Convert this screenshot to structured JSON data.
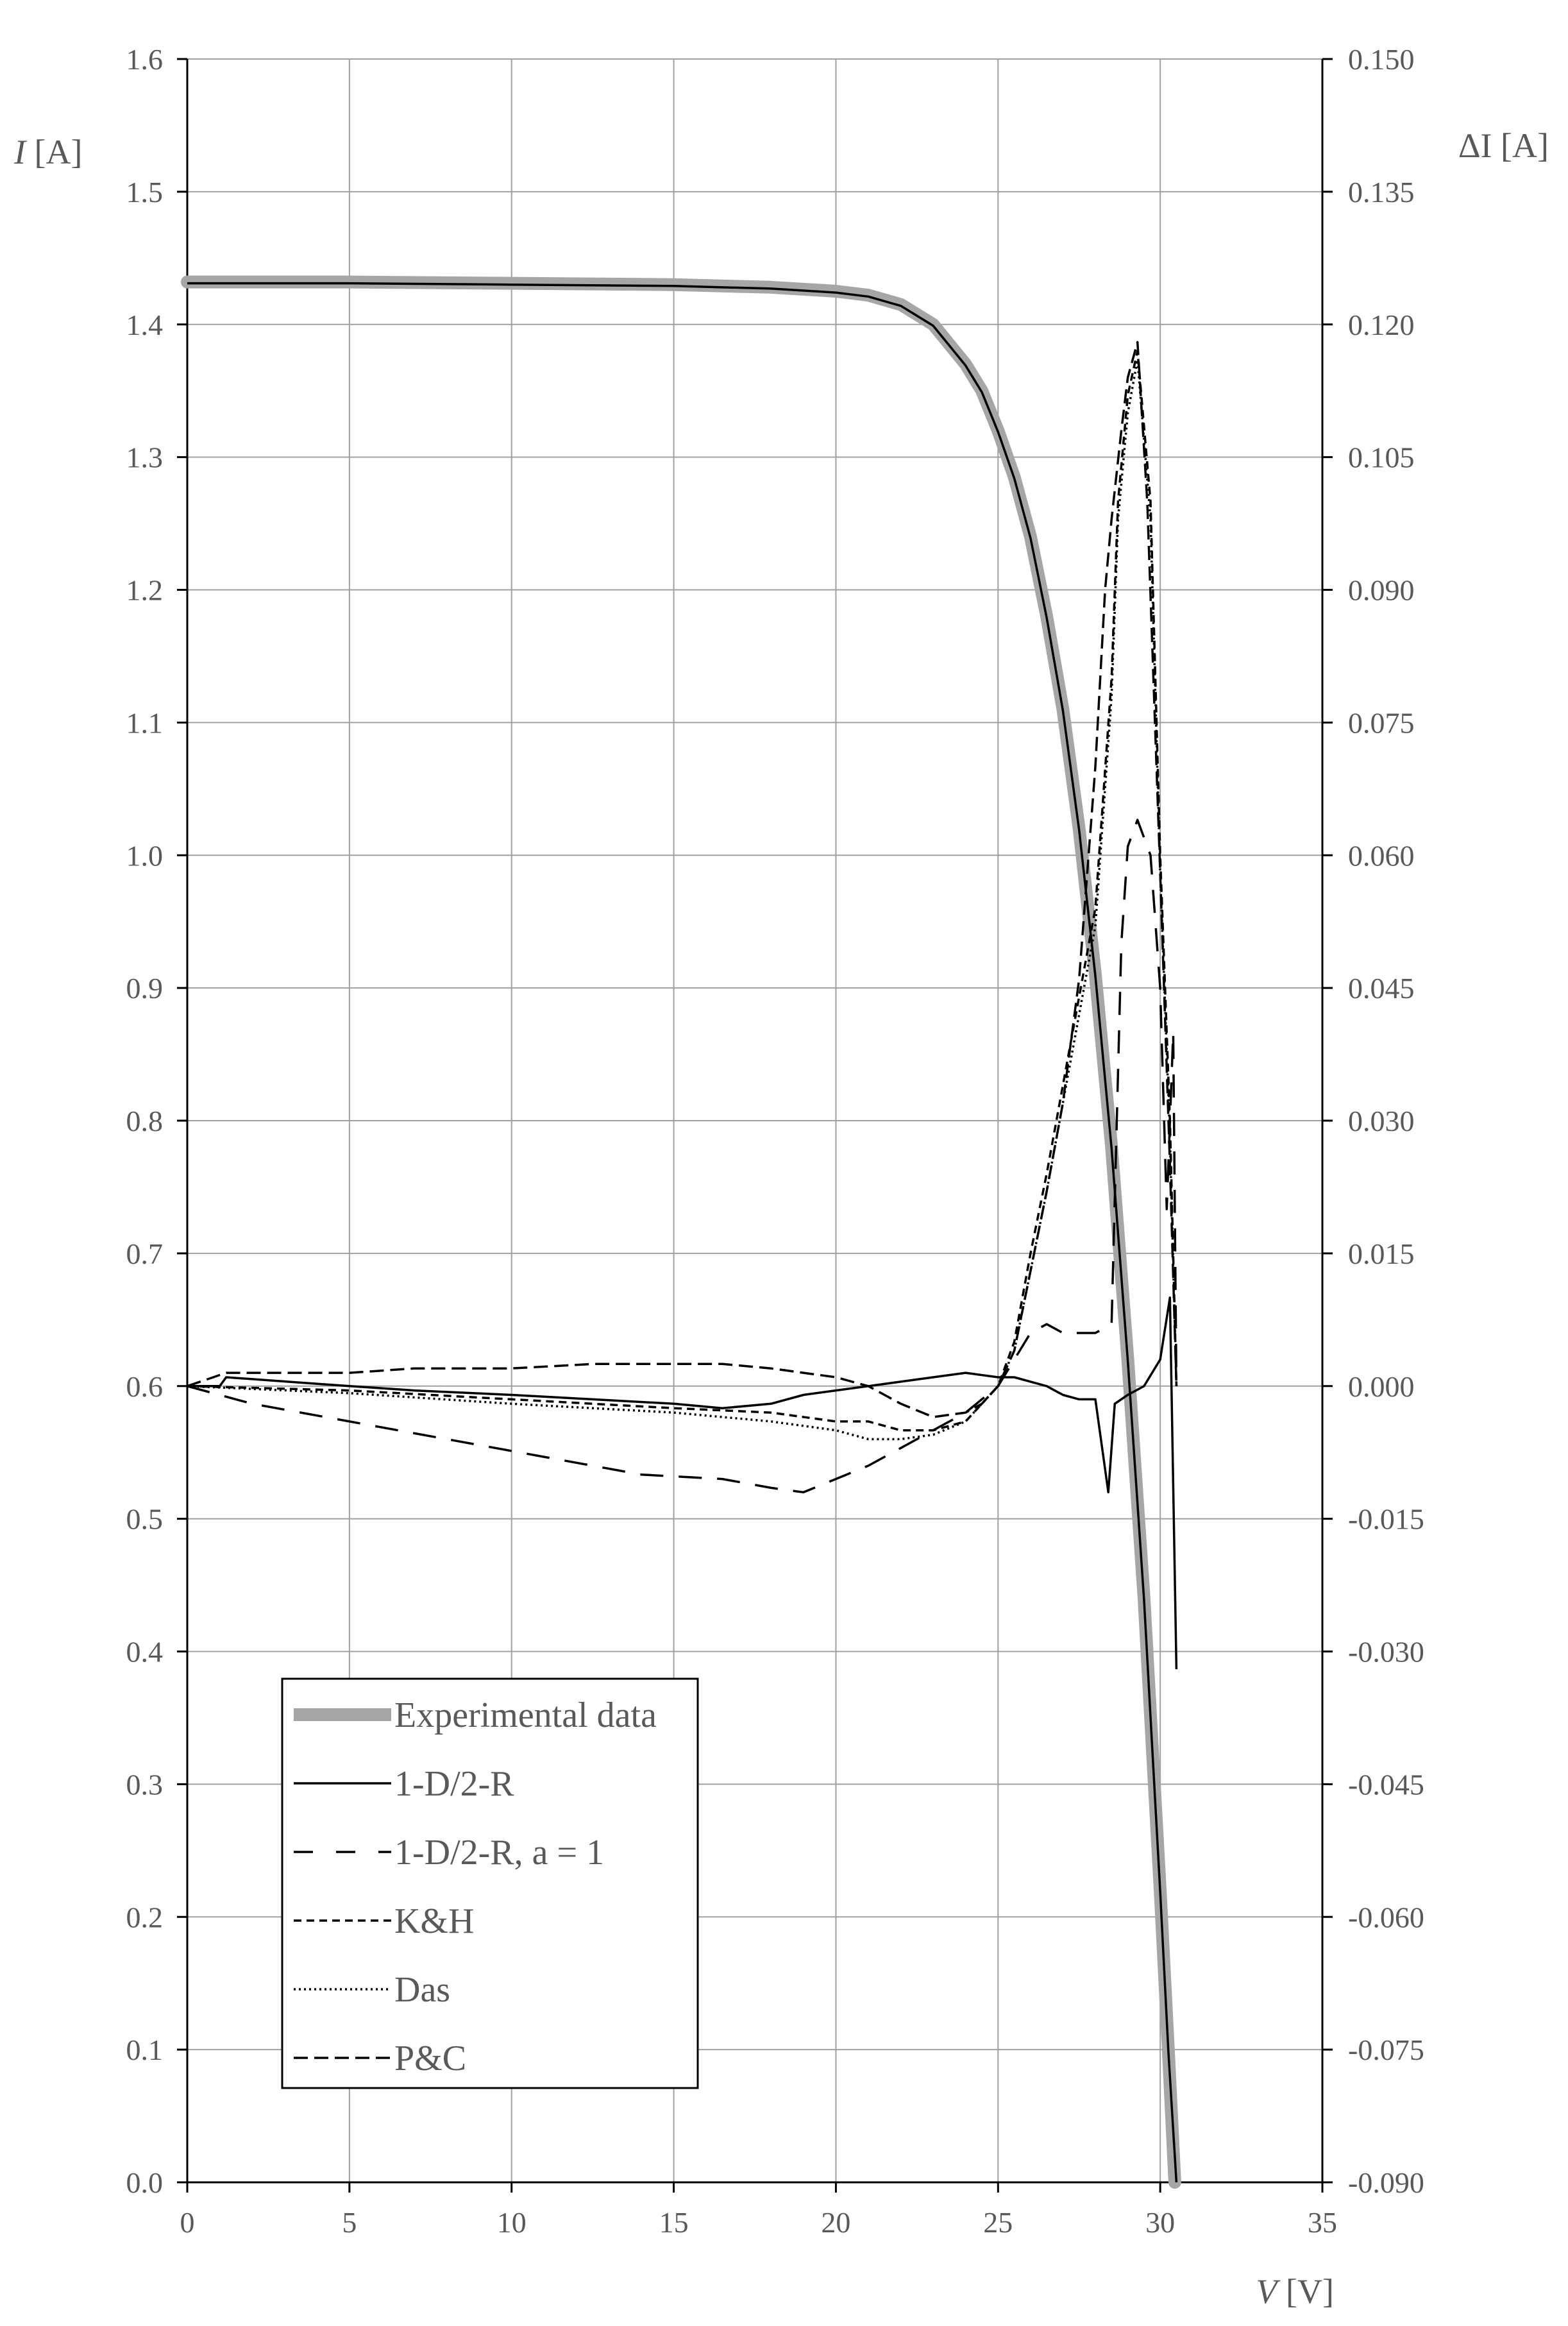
{
  "chart_data": {
    "type": "line",
    "title": "",
    "xlabel": {
      "symbol": "V",
      "unit": "[V]"
    },
    "ylabel_left": {
      "symbol": "I",
      "unit": "[A]"
    },
    "ylabel_right": {
      "symbol": "ΔI",
      "unit": "[A]"
    },
    "xlim": [
      0,
      35
    ],
    "ylim_left": [
      0.0,
      1.6
    ],
    "ylim_right": [
      -0.09,
      0.15
    ],
    "grid": true,
    "legend_position": "bottom-left",
    "x_ticks": [
      "0",
      "5",
      "10",
      "15",
      "20",
      "25",
      "30",
      "35"
    ],
    "y_left_ticks": [
      "0.0",
      "0.1",
      "0.2",
      "0.3",
      "0.4",
      "0.5",
      "0.6",
      "0.7",
      "0.8",
      "0.9",
      "1.0",
      "1.1",
      "1.2",
      "1.3",
      "1.4",
      "1.5",
      "1.6"
    ],
    "y_right_ticks": [
      "-0.090",
      "-0.075",
      "-0.060",
      "-0.045",
      "-0.030",
      "-0.015",
      "0.000",
      "0.015",
      "0.030",
      "0.045",
      "0.060",
      "0.075",
      "0.090",
      "0.105",
      "0.120",
      "0.135",
      "0.150"
    ],
    "series": [
      {
        "name": "Experimental data",
        "axis": "left",
        "style": "thick-gray",
        "color": "#a6a6a6",
        "points": [
          [
            0,
            1.432
          ],
          [
            5,
            1.432
          ],
          [
            10,
            1.431
          ],
          [
            15,
            1.43
          ],
          [
            18,
            1.428
          ],
          [
            20,
            1.425
          ],
          [
            21,
            1.422
          ],
          [
            22,
            1.415
          ],
          [
            23,
            1.4
          ],
          [
            24,
            1.37
          ],
          [
            24.5,
            1.35
          ],
          [
            25,
            1.32
          ],
          [
            25.5,
            1.285
          ],
          [
            26,
            1.24
          ],
          [
            26.5,
            1.18
          ],
          [
            27,
            1.11
          ],
          [
            27.5,
            1.02
          ],
          [
            28,
            0.91
          ],
          [
            28.5,
            0.78
          ],
          [
            29,
            0.62
          ],
          [
            29.5,
            0.44
          ],
          [
            30,
            0.22
          ],
          [
            30.25,
            0.1
          ],
          [
            30.45,
            0.0
          ]
        ]
      },
      {
        "name": "1-D/2-R",
        "axis": "left",
        "style": "solid",
        "color": "#000000",
        "points": [
          [
            0,
            1.431
          ],
          [
            5,
            1.431
          ],
          [
            10,
            1.43
          ],
          [
            15,
            1.429
          ],
          [
            18,
            1.427
          ],
          [
            20,
            1.424
          ],
          [
            21,
            1.421
          ],
          [
            22,
            1.414
          ],
          [
            23,
            1.399
          ],
          [
            24,
            1.369
          ],
          [
            24.5,
            1.349
          ],
          [
            25,
            1.319
          ],
          [
            25.5,
            1.284
          ],
          [
            26,
            1.239
          ],
          [
            26.5,
            1.179
          ],
          [
            27,
            1.109
          ],
          [
            27.5,
            1.019
          ],
          [
            28,
            0.909
          ],
          [
            28.5,
            0.779
          ],
          [
            29,
            0.619
          ],
          [
            29.5,
            0.439
          ],
          [
            30,
            0.219
          ],
          [
            30.25,
            0.099
          ],
          [
            30.5,
            0.0
          ]
        ]
      },
      {
        "name": "1-D/2-R",
        "axis": "right",
        "style": "solid",
        "color": "#000000",
        "points": [
          [
            0,
            0.0
          ],
          [
            1,
            0.0
          ],
          [
            1.2,
            0.001
          ],
          [
            5,
            0.0
          ],
          [
            7,
            -0.0005
          ],
          [
            10,
            -0.001
          ],
          [
            12.5,
            -0.0015
          ],
          [
            15,
            -0.002
          ],
          [
            16.5,
            -0.0025
          ],
          [
            18,
            -0.002
          ],
          [
            19,
            -0.001
          ],
          [
            20,
            -0.0005
          ],
          [
            21,
            0.0
          ],
          [
            22,
            0.0005
          ],
          [
            23,
            0.001
          ],
          [
            24,
            0.0015
          ],
          [
            25,
            0.001
          ],
          [
            25.5,
            0.001
          ],
          [
            26,
            0.0005
          ],
          [
            26.5,
            0.0
          ],
          [
            27,
            -0.001
          ],
          [
            27.5,
            -0.0015
          ],
          [
            28,
            -0.0015
          ],
          [
            28.4,
            -0.012
          ],
          [
            28.6,
            -0.002
          ],
          [
            29,
            -0.001
          ],
          [
            29.5,
            0.0
          ],
          [
            30,
            0.003
          ],
          [
            30.3,
            0.01
          ],
          [
            30.5,
            -0.032
          ]
        ]
      },
      {
        "name": "1-D/2-R, a = 1",
        "axis": "right",
        "style": "long-dash",
        "color": "#000000",
        "points": [
          [
            0,
            0.0
          ],
          [
            2,
            -0.002
          ],
          [
            5,
            -0.004
          ],
          [
            8,
            -0.006
          ],
          [
            11,
            -0.008
          ],
          [
            14,
            -0.01
          ],
          [
            16.5,
            -0.0105
          ],
          [
            18,
            -0.0115
          ],
          [
            19,
            -0.012
          ],
          [
            20,
            -0.0105
          ],
          [
            21,
            -0.009
          ],
          [
            22,
            -0.007
          ],
          [
            23,
            -0.005
          ],
          [
            24,
            -0.003
          ],
          [
            25,
            0.0
          ],
          [
            25.5,
            0.003
          ],
          [
            26,
            0.006
          ],
          [
            26.5,
            0.007
          ],
          [
            27,
            0.006
          ],
          [
            27.5,
            0.006
          ],
          [
            28,
            0.006
          ],
          [
            28.5,
            0.007
          ],
          [
            28.8,
            0.05
          ],
          [
            29,
            0.061
          ],
          [
            29.3,
            0.064
          ],
          [
            29.7,
            0.06
          ],
          [
            30,
            0.045
          ],
          [
            30.2,
            0.02
          ],
          [
            30.4,
            0.04
          ],
          [
            30.5,
            0.0
          ]
        ]
      },
      {
        "name": "K&H",
        "axis": "right",
        "style": "short-dash",
        "color": "#000000",
        "points": [
          [
            0,
            0.0
          ],
          [
            5,
            -0.0005
          ],
          [
            10,
            -0.0015
          ],
          [
            15,
            -0.0025
          ],
          [
            18,
            -0.003
          ],
          [
            20,
            -0.004
          ],
          [
            21,
            -0.004
          ],
          [
            22,
            -0.005
          ],
          [
            23,
            -0.005
          ],
          [
            24,
            -0.004
          ],
          [
            24.5,
            -0.002
          ],
          [
            25,
            0.0
          ],
          [
            25.5,
            0.005
          ],
          [
            26,
            0.015
          ],
          [
            26.5,
            0.024
          ],
          [
            27,
            0.034
          ],
          [
            27.5,
            0.044
          ],
          [
            28,
            0.054
          ],
          [
            28.5,
            0.08
          ],
          [
            28.7,
            0.1
          ],
          [
            29,
            0.112
          ],
          [
            29.3,
            0.117
          ],
          [
            29.7,
            0.1
          ],
          [
            30,
            0.06
          ],
          [
            30.3,
            0.03
          ],
          [
            30.5,
            0.0
          ]
        ]
      },
      {
        "name": "Das",
        "axis": "right",
        "style": "dotted",
        "color": "#000000",
        "points": [
          [
            0,
            0.0
          ],
          [
            5,
            -0.0008
          ],
          [
            10,
            -0.002
          ],
          [
            15,
            -0.003
          ],
          [
            18,
            -0.004
          ],
          [
            20,
            -0.005
          ],
          [
            21,
            -0.006
          ],
          [
            22,
            -0.006
          ],
          [
            23,
            -0.0055
          ],
          [
            24,
            -0.004
          ],
          [
            24.5,
            -0.002
          ],
          [
            25,
            0.0
          ],
          [
            25.5,
            0.004
          ],
          [
            26,
            0.013
          ],
          [
            26.5,
            0.022
          ],
          [
            27,
            0.032
          ],
          [
            27.5,
            0.042
          ],
          [
            28,
            0.052
          ],
          [
            28.5,
            0.078
          ],
          [
            28.7,
            0.098
          ],
          [
            29,
            0.11
          ],
          [
            29.3,
            0.116
          ],
          [
            29.7,
            0.098
          ],
          [
            30,
            0.058
          ],
          [
            30.3,
            0.028
          ],
          [
            30.5,
            0.0
          ]
        ]
      },
      {
        "name": "P&C",
        "axis": "right",
        "style": "medium-dash",
        "color": "#000000",
        "points": [
          [
            0,
            0.0
          ],
          [
            1.2,
            0.0015
          ],
          [
            5,
            0.0015
          ],
          [
            7,
            0.002
          ],
          [
            10,
            0.002
          ],
          [
            12.5,
            0.0025
          ],
          [
            15,
            0.0025
          ],
          [
            16.5,
            0.0025
          ],
          [
            18,
            0.002
          ],
          [
            19,
            0.0015
          ],
          [
            20,
            0.001
          ],
          [
            21,
            0.0
          ],
          [
            22,
            -0.002
          ],
          [
            23,
            -0.0035
          ],
          [
            24,
            -0.003
          ],
          [
            24.5,
            -0.002
          ],
          [
            25,
            0.0
          ],
          [
            25.5,
            0.004
          ],
          [
            26,
            0.013
          ],
          [
            26.5,
            0.022
          ],
          [
            27,
            0.032
          ],
          [
            27.5,
            0.046
          ],
          [
            28,
            0.07
          ],
          [
            28.3,
            0.09
          ],
          [
            28.5,
            0.098
          ],
          [
            28.8,
            0.108
          ],
          [
            29,
            0.114
          ],
          [
            29.3,
            0.118
          ],
          [
            29.6,
            0.1
          ],
          [
            30,
            0.058
          ],
          [
            30.3,
            0.025
          ],
          [
            30.5,
            0.0
          ]
        ]
      }
    ]
  }
}
